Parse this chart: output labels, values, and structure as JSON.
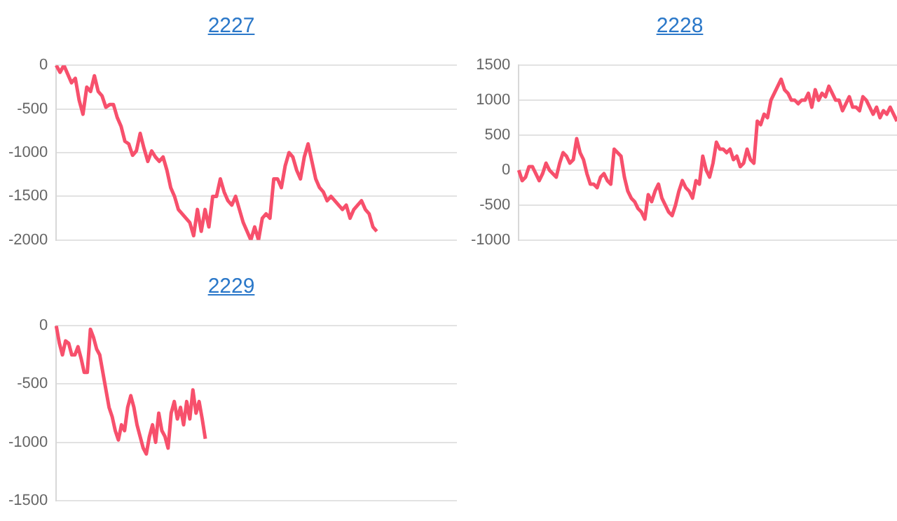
{
  "chart_data": [
    {
      "type": "line",
      "title": "2227",
      "color": "#f7506c",
      "grid": "y",
      "legend": false,
      "marker": "none",
      "tick_labels": "y",
      "ylim": [
        -2000,
        0
      ],
      "yticks": [
        0,
        -500,
        -1000,
        -1500,
        -2000
      ],
      "categories": [
        null,
        null,
        null,
        null,
        null,
        null,
        null,
        null,
        null,
        null,
        null,
        null,
        null,
        null,
        null,
        null,
        null,
        null,
        null,
        null,
        null,
        null,
        null,
        null,
        null,
        null,
        null,
        null,
        null,
        null,
        null,
        null,
        null,
        null,
        null,
        null,
        null,
        null,
        null,
        null,
        null,
        null,
        null,
        null,
        null,
        null,
        null,
        null,
        null,
        null,
        null,
        null,
        null,
        null,
        null,
        null,
        null,
        null,
        null,
        null,
        null,
        null,
        null,
        null,
        null,
        null,
        null,
        null,
        null,
        null,
        null,
        null,
        null,
        null,
        null,
        null,
        null,
        null,
        null,
        null,
        null,
        null,
        null,
        null,
        null,
        null,
        null,
        null,
        null,
        null,
        null,
        null,
        null,
        null,
        null,
        null,
        null,
        null,
        null,
        null,
        null,
        null,
        null,
        null,
        null,
        null
      ],
      "values": [
        0,
        -80,
        0,
        -100,
        -200,
        -150,
        -400,
        -560,
        -250,
        -300,
        -120,
        -300,
        -350,
        -480,
        -450,
        -450,
        -600,
        -700,
        -870,
        -900,
        -1030,
        -980,
        -780,
        -950,
        -1100,
        -980,
        -1050,
        -1100,
        -1050,
        -1200,
        -1400,
        -1500,
        -1650,
        -1700,
        -1750,
        -1800,
        -1950,
        -1650,
        -1900,
        -1650,
        -1850,
        -1500,
        -1500,
        -1300,
        -1450,
        -1550,
        -1600,
        -1500,
        -1650,
        -1800,
        -1900,
        -2000,
        -1850,
        -2000,
        -1750,
        -1700,
        -1750,
        -1300,
        -1300,
        -1400,
        -1150,
        -1000,
        -1050,
        -1200,
        -1300,
        -1050,
        -900,
        -1100,
        -1300,
        -1400,
        -1450,
        -1550,
        -1500,
        -1550,
        -1600,
        -1650,
        -1600,
        -1750,
        -1650,
        -1600,
        -1550,
        -1650,
        -1700,
        -1850,
        -1900,
        null,
        null,
        null,
        null,
        null,
        null,
        null,
        null,
        null,
        null,
        null,
        null,
        null,
        null,
        null,
        null,
        null,
        null,
        null,
        null,
        null
      ]
    },
    {
      "type": "line",
      "title": "2228",
      "color": "#f7506c",
      "grid": "y",
      "legend": false,
      "marker": "none",
      "tick_labels": "y",
      "ylim": [
        -1000,
        1500
      ],
      "yticks": [
        1500,
        1000,
        500,
        0,
        -500,
        -1000
      ],
      "categories": [
        null,
        null,
        null,
        null,
        null,
        null,
        null,
        null,
        null,
        null,
        null,
        null,
        null,
        null,
        null,
        null,
        null,
        null,
        null,
        null,
        null,
        null,
        null,
        null,
        null,
        null,
        null,
        null,
        null,
        null,
        null,
        null,
        null,
        null,
        null,
        null,
        null,
        null,
        null,
        null,
        null,
        null,
        null,
        null,
        null,
        null,
        null,
        null,
        null,
        null,
        null,
        null,
        null,
        null,
        null,
        null,
        null,
        null,
        null,
        null,
        null,
        null,
        null,
        null,
        null,
        null,
        null,
        null,
        null,
        null,
        null,
        null,
        null,
        null,
        null,
        null,
        null,
        null,
        null,
        null,
        null,
        null,
        null,
        null,
        null,
        null,
        null,
        null,
        null,
        null,
        null,
        null,
        null,
        null,
        null,
        null,
        null,
        null,
        null,
        null,
        null,
        null,
        null,
        null,
        null,
        null,
        null,
        null,
        null,
        null,
        null,
        null
      ],
      "values": [
        0,
        -150,
        -100,
        50,
        50,
        -50,
        -150,
        -50,
        100,
        0,
        -50,
        -100,
        100,
        250,
        200,
        100,
        150,
        450,
        250,
        150,
        -50,
        -200,
        -200,
        -250,
        -100,
        -50,
        -150,
        -200,
        300,
        250,
        200,
        -100,
        -300,
        -400,
        -450,
        -550,
        -600,
        -700,
        -350,
        -450,
        -300,
        -200,
        -400,
        -500,
        -600,
        -650,
        -500,
        -300,
        -150,
        -250,
        -300,
        -400,
        -150,
        -200,
        200,
        0,
        -100,
        100,
        400,
        300,
        300,
        250,
        300,
        150,
        200,
        50,
        100,
        300,
        150,
        100,
        700,
        650,
        800,
        750,
        1000,
        1100,
        1200,
        1300,
        1150,
        1100,
        1000,
        1000,
        950,
        1000,
        1000,
        1100,
        900,
        1150,
        1000,
        1100,
        1050,
        1200,
        1100,
        1000,
        1000,
        850,
        950,
        1050,
        900,
        900,
        850,
        1050,
        1000,
        900,
        800,
        900,
        750,
        850,
        800,
        900,
        800,
        700
      ]
    },
    {
      "type": "line",
      "title": "2229",
      "color": "#f7506c",
      "grid": "y",
      "legend": false,
      "marker": "none",
      "tick_labels": "y",
      "ylim": [
        -1500,
        0
      ],
      "yticks": [
        0,
        -500,
        -1000,
        -1500
      ],
      "categories": [
        null,
        null,
        null,
        null,
        null,
        null,
        null,
        null,
        null,
        null,
        null,
        null,
        null,
        null,
        null,
        null,
        null,
        null,
        null,
        null,
        null,
        null,
        null,
        null,
        null,
        null,
        null,
        null,
        null,
        null,
        null,
        null,
        null,
        null,
        null,
        null,
        null,
        null,
        null,
        null,
        null,
        null,
        null,
        null,
        null,
        null,
        null,
        null,
        null,
        null,
        null,
        null,
        null,
        null,
        null,
        null,
        null,
        null,
        null,
        null,
        null,
        null,
        null,
        null,
        null,
        null,
        null,
        null,
        null,
        null,
        null,
        null,
        null,
        null,
        null,
        null,
        null,
        null,
        null,
        null,
        null,
        null,
        null,
        null,
        null,
        null,
        null,
        null,
        null,
        null,
        null,
        null,
        null,
        null,
        null,
        null,
        null,
        null,
        null,
        null,
        null,
        null,
        null,
        null,
        null,
        null,
        null,
        null,
        null,
        null,
        null,
        null,
        null,
        null,
        null,
        null,
        null,
        null,
        null,
        null,
        null,
        null,
        null,
        null,
        null,
        null,
        null,
        null,
        null,
        null
      ],
      "values": [
        0,
        -150,
        -250,
        -130,
        -150,
        -250,
        -250,
        -180,
        -280,
        -400,
        -400,
        -30,
        -100,
        -200,
        -250,
        -400,
        -550,
        -700,
        -780,
        -900,
        -980,
        -850,
        -900,
        -700,
        -600,
        -700,
        -850,
        -950,
        -1050,
        -1100,
        -950,
        -850,
        -1000,
        -750,
        -900,
        -950,
        -1050,
        -750,
        -650,
        -800,
        -700,
        -850,
        -650,
        -800,
        -550,
        -750,
        -650,
        -800,
        -970,
        null,
        null,
        null,
        null,
        null,
        null,
        null,
        null,
        null,
        null,
        null,
        null,
        null,
        null,
        null,
        null,
        null,
        null,
        null,
        null,
        null,
        null,
        null,
        null,
        null,
        null,
        null,
        null,
        null,
        null,
        null,
        null,
        null,
        null,
        null,
        null,
        null,
        null,
        null,
        null,
        null,
        null,
        null,
        null,
        null,
        null,
        null,
        null,
        null,
        null,
        null,
        null,
        null,
        null,
        null,
        null,
        null,
        null,
        null,
        null,
        null,
        null,
        null,
        null,
        null,
        null,
        null,
        null,
        null,
        null,
        null,
        null,
        null,
        null,
        null,
        null,
        null,
        null,
        null,
        null,
        null
      ]
    }
  ]
}
